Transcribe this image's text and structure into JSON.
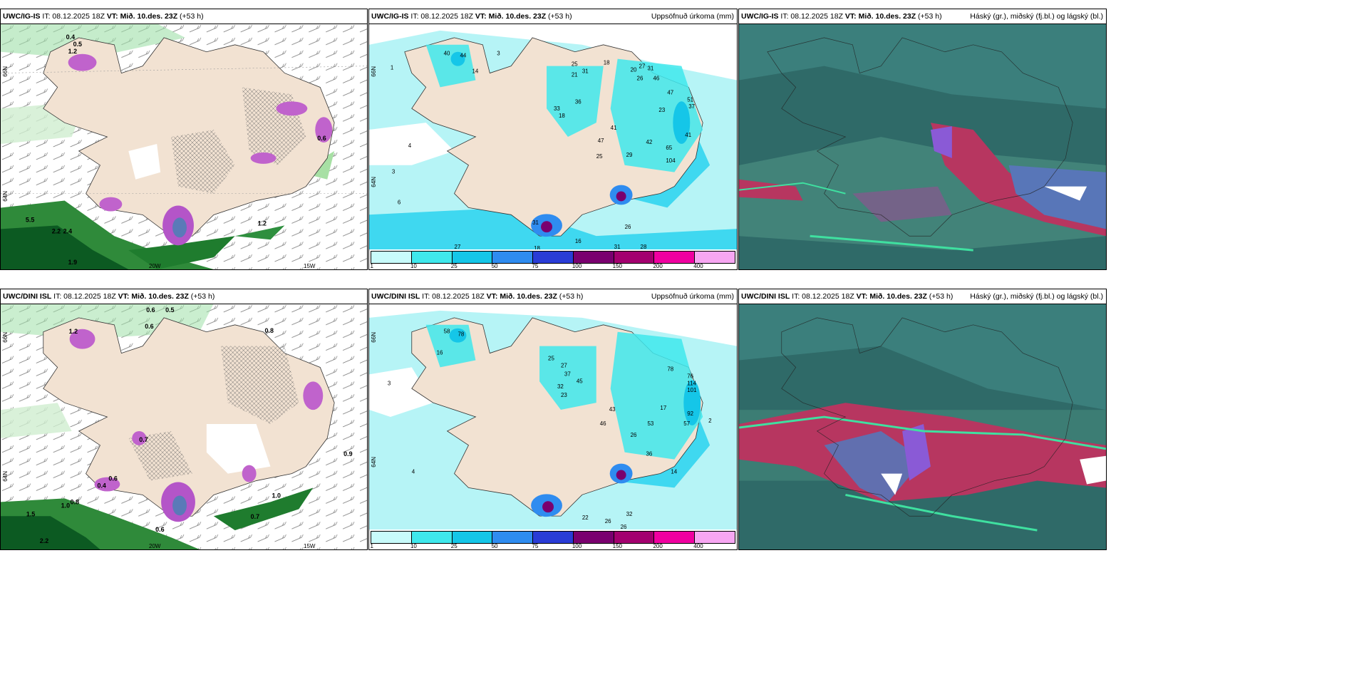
{
  "panels": [
    {
      "model": "UWC/IG-IS",
      "init": "IT: 08.12.2025 18Z",
      "valid": "VT: Mið. 10.des. 23Z",
      "lead": "(+53 h)",
      "product": ""
    },
    {
      "model": "UWC/IG-IS",
      "init": "IT: 08.12.2025 18Z",
      "valid": "VT: Mið. 10.des. 23Z",
      "lead": "(+53 h)",
      "product": "Uppsöfnuð úrkoma (mm)"
    },
    {
      "model": "UWC/IG-IS",
      "init": "IT: 08.12.2025 18Z",
      "valid": "VT: Mið. 10.des. 23Z",
      "lead": "(+53 h)",
      "product": "Háský (gr.), miðský (fj.bl.) og lágský (bl.)"
    },
    {
      "model": "UWC/DINI ISL",
      "init": "IT: 08.12.2025 18Z",
      "valid": "VT: Mið. 10.des. 23Z",
      "lead": "(+53 h)",
      "product": ""
    },
    {
      "model": "UWC/DINI ISL",
      "init": "IT: 08.12.2025 18Z",
      "valid": "VT: Mið. 10.des. 23Z",
      "lead": "(+53 h)",
      "product": "Uppsöfnuð úrkoma (mm)"
    },
    {
      "model": "UWC/DINI ISL",
      "init": "IT: 08.12.2025 18Z",
      "valid": "VT: Mið. 10.des. 23Z",
      "lead": "(+53 h)",
      "product": "Háský (gr.), miðský (fj.bl.) og lágský (bl.)"
    }
  ],
  "axis": {
    "lat_top": "66N",
    "lat_bottom": "64N",
    "lon_left": "20W",
    "lon_right": "15W"
  },
  "precip_colorbar": {
    "levels": [
      "1",
      "10",
      "25",
      "50",
      "75",
      "100",
      "150",
      "200",
      "400"
    ],
    "colors": [
      "#c8fbfb",
      "#3fe8ec",
      "#15c6e8",
      "#2f8cf0",
      "#2a3cd6",
      "#7a006f",
      "#a3006f",
      "#f000a0",
      "#f7a6f2"
    ]
  },
  "colors": {
    "land": "#f2e2d2",
    "sea_light": "#b6f4f6",
    "sea_mid": "#3fd8f0",
    "cloud_bg": "#2f6a68",
    "cloud_high": "#4a8f80",
    "cloud_mid": "#5876b8",
    "cloud_low": "#b73660"
  },
  "precip_top_labels": [
    "40",
    "44",
    "1",
    "3",
    "14",
    "25",
    "21",
    "31",
    "18",
    "20",
    "27",
    "31",
    "26",
    "46",
    "47",
    "23",
    "51",
    "37",
    "41",
    "42",
    "65",
    "104",
    "36",
    "33",
    "18",
    "41",
    "47",
    "29",
    "25",
    "31",
    "31",
    "26",
    "28",
    "16",
    "27",
    "18",
    "4",
    "6",
    "3"
  ],
  "precip_bottom_labels": [
    "58",
    "78",
    "16",
    "25",
    "27",
    "37",
    "32",
    "23",
    "45",
    "43",
    "46",
    "26",
    "53",
    "78",
    "76",
    "114",
    "101",
    "57",
    "92",
    "36",
    "22",
    "32",
    "26",
    "26",
    "14",
    "17",
    "4",
    "3",
    "2"
  ],
  "left_top_labels": [
    "0.4",
    "0.5",
    "1.2",
    "0.9",
    "5.5",
    "2.2",
    "2.4",
    "1.9",
    "1.2",
    "0.6",
    "0.5"
  ],
  "left_bottom_labels": [
    "0.6",
    "0.5",
    "0.6",
    "1.2",
    "0.7",
    "0.4",
    "0.6",
    "1.5",
    "1.0",
    "0.8",
    "2.2",
    "0.6",
    "0.7",
    "1.0",
    "0.9",
    "0.8"
  ]
}
